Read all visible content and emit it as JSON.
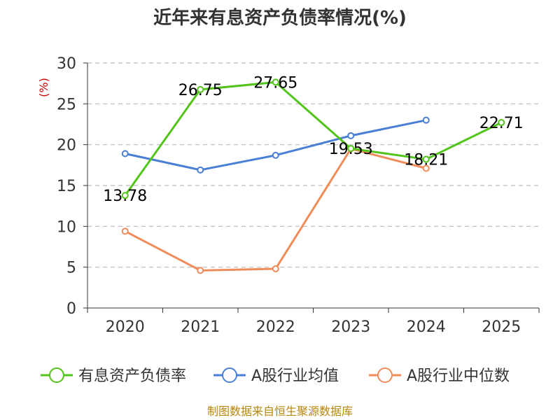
{
  "chart_data": {
    "type": "line",
    "title": "近年来有息资产负债率情况(%)",
    "ylabel": "(%)",
    "categories": [
      "2020",
      "2021",
      "2022",
      "2023",
      "2024",
      "2025"
    ],
    "ylim": [
      0,
      30
    ],
    "yticks": [
      0,
      5,
      10,
      15,
      20,
      25,
      30
    ],
    "grid": "horizontal-dashed",
    "legend": "bottom",
    "series": [
      {
        "name": "有息资产负债率",
        "color": "#52c41a",
        "values": [
          13.78,
          26.75,
          27.65,
          19.53,
          18.21,
          22.71
        ],
        "labels": [
          "13.78",
          "26.75",
          "27.65",
          "19.53",
          "18.21",
          "22.71"
        ]
      },
      {
        "name": "A股行业均值",
        "color": "#4a7fd6",
        "values": [
          18.9,
          16.9,
          18.7,
          21.1,
          23.0,
          null
        ]
      },
      {
        "name": "A股行业中位数",
        "color": "#f08c5a",
        "values": [
          9.4,
          4.6,
          4.8,
          19.5,
          17.1,
          null
        ]
      }
    ]
  },
  "source": "制图数据来自恒生聚源数据库"
}
